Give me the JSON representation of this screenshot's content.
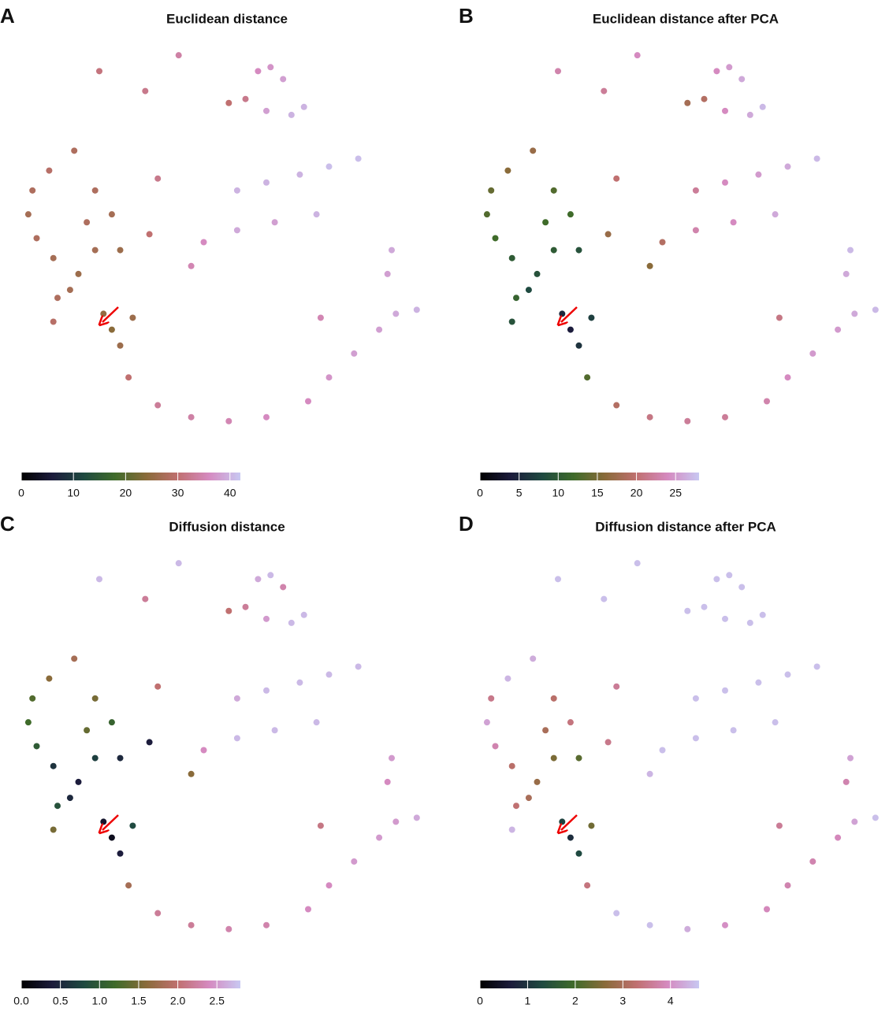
{
  "chart_data": [
    {
      "type": "scatter",
      "panel": "A",
      "title": "Euclidean distance",
      "x": [
        39,
        20,
        31,
        58,
        61,
        64,
        51,
        55,
        60,
        66,
        69,
        14,
        8,
        4,
        3,
        5,
        9,
        15,
        19,
        17,
        19,
        23,
        25,
        10,
        9,
        13,
        21,
        23,
        28,
        25,
        27,
        34,
        42,
        51,
        60,
        70,
        75,
        81,
        87,
        91,
        96,
        89,
        90,
        34,
        42,
        45,
        53,
        60,
        68,
        75,
        82,
        62,
        72,
        53,
        32,
        73
      ],
      "y": [
        97,
        93,
        88,
        93,
        94,
        91,
        85,
        86,
        83,
        82,
        84,
        73,
        68,
        63,
        57,
        51,
        46,
        42,
        48,
        55,
        63,
        57,
        48,
        36,
        30,
        38,
        32,
        28,
        31,
        24,
        16,
        9,
        6,
        5,
        6,
        10,
        16,
        22,
        28,
        32,
        33,
        42,
        48,
        66,
        44,
        50,
        63,
        65,
        67,
        69,
        71,
        55,
        57,
        53,
        52,
        31
      ],
      "values": [
        34,
        31,
        32,
        36,
        37,
        38,
        30,
        32,
        38,
        40,
        40,
        28,
        29,
        28,
        27,
        28,
        27,
        26,
        27,
        28,
        28,
        27,
        26,
        28,
        29,
        27,
        25,
        24,
        26,
        26,
        30,
        33,
        34,
        35,
        36,
        36,
        37,
        38,
        38,
        39,
        40,
        38,
        39,
        32,
        35,
        36,
        40,
        40,
        40,
        41,
        41,
        38,
        40,
        39,
        30,
        35
      ],
      "xlim": [
        0,
        100
      ],
      "ylim": [
        0,
        100
      ],
      "clim": [
        0,
        42
      ],
      "cticks": [
        0,
        10,
        20,
        30,
        40
      ],
      "colormap": [
        "#000000",
        "#1c1c3c",
        "#1f4a40",
        "#3f6b2a",
        "#8a6b3a",
        "#c07070",
        "#d58ac0",
        "#c8c8f2"
      ]
    },
    {
      "type": "scatter",
      "panel": "B",
      "title": "Euclidean distance after PCA",
      "x": [
        39,
        20,
        31,
        58,
        61,
        64,
        51,
        55,
        60,
        66,
        69,
        14,
        8,
        4,
        3,
        5,
        9,
        15,
        19,
        17,
        19,
        23,
        25,
        10,
        9,
        13,
        21,
        23,
        28,
        25,
        27,
        34,
        42,
        51,
        60,
        70,
        75,
        81,
        87,
        91,
        96,
        89,
        90,
        34,
        42,
        45,
        53,
        60,
        68,
        75,
        82,
        62,
        72,
        53,
        32,
        73
      ],
      "y": [
        97,
        93,
        88,
        93,
        94,
        91,
        85,
        86,
        83,
        82,
        84,
        73,
        68,
        63,
        57,
        51,
        46,
        42,
        48,
        55,
        63,
        57,
        48,
        36,
        30,
        38,
        32,
        28,
        31,
        24,
        16,
        9,
        6,
        5,
        6,
        10,
        16,
        22,
        28,
        32,
        33,
        42,
        48,
        66,
        44,
        50,
        63,
        65,
        67,
        69,
        71,
        55,
        57,
        53,
        52,
        31
      ],
      "values": [
        24,
        23,
        22,
        24,
        25,
        26,
        18,
        19,
        24,
        26,
        27,
        17,
        16,
        14,
        13,
        12,
        10,
        9,
        10,
        12,
        13,
        12,
        9,
        11,
        9,
        8,
        5,
        4,
        7,
        6,
        13,
        19,
        21,
        22,
        22,
        23,
        24,
        25,
        25,
        26,
        27,
        26,
        27,
        20,
        16,
        19,
        22,
        24,
        25,
        26,
        27,
        24,
        26,
        23,
        17,
        21
      ],
      "xlim": [
        0,
        100
      ],
      "ylim": [
        0,
        100
      ],
      "clim": [
        0,
        28
      ],
      "cticks": [
        0,
        5,
        10,
        15,
        20,
        25
      ],
      "colormap": [
        "#000000",
        "#1c1c3c",
        "#1f4a40",
        "#3f6b2a",
        "#8a6b3a",
        "#c07070",
        "#d58ac0",
        "#c8c8f2"
      ]
    },
    {
      "type": "scatter",
      "panel": "C",
      "title": "Diffusion distance",
      "x": [
        39,
        20,
        31,
        58,
        61,
        64,
        51,
        55,
        60,
        66,
        69,
        14,
        8,
        4,
        3,
        5,
        9,
        15,
        19,
        17,
        19,
        23,
        25,
        10,
        9,
        13,
        21,
        23,
        28,
        25,
        27,
        34,
        42,
        51,
        60,
        70,
        75,
        81,
        87,
        91,
        96,
        89,
        90,
        34,
        42,
        45,
        53,
        60,
        68,
        75,
        82,
        62,
        72,
        53,
        32,
        73
      ],
      "y": [
        97,
        93,
        88,
        93,
        94,
        91,
        85,
        86,
        83,
        82,
        84,
        73,
        68,
        63,
        57,
        51,
        46,
        42,
        48,
        55,
        63,
        57,
        48,
        36,
        30,
        38,
        32,
        28,
        31,
        24,
        16,
        9,
        6,
        5,
        6,
        10,
        16,
        22,
        28,
        32,
        33,
        42,
        48,
        66,
        44,
        50,
        63,
        65,
        67,
        69,
        71,
        55,
        57,
        53,
        52,
        31
      ],
      "values": [
        2.7,
        2.7,
        2.2,
        2.6,
        2.7,
        2.3,
        2.0,
        2.2,
        2.5,
        2.7,
        2.7,
        1.8,
        1.6,
        1.3,
        1.2,
        1.0,
        0.6,
        0.4,
        0.7,
        1.4,
        1.5,
        1.1,
        0.5,
        0.9,
        1.5,
        0.5,
        0.3,
        0.2,
        0.8,
        0.4,
        1.8,
        2.2,
        2.2,
        2.3,
        2.3,
        2.4,
        2.4,
        2.5,
        2.5,
        2.5,
        2.6,
        2.4,
        2.5,
        2.0,
        1.6,
        2.4,
        2.6,
        2.7,
        2.7,
        2.7,
        2.7,
        2.7,
        2.7,
        2.7,
        0.4,
        2.1
      ],
      "xlim": [
        0,
        100
      ],
      "ylim": [
        0,
        100
      ],
      "clim": [
        0,
        2.8
      ],
      "cticks": [
        {
          "value": 0,
          "label": "0.0"
        },
        0.5,
        {
          "value": 1,
          "label": "1.0"
        },
        1.5,
        {
          "value": 2,
          "label": "2.0"
        },
        2.5
      ],
      "colormap": [
        "#000000",
        "#1c1c3c",
        "#1f4a40",
        "#3f6b2a",
        "#8a6b3a",
        "#c07070",
        "#d58ac0",
        "#c8c8f2"
      ]
    },
    {
      "type": "scatter",
      "panel": "D",
      "title": "Diffusion distance after PCA",
      "x": [
        39,
        20,
        31,
        58,
        61,
        64,
        51,
        55,
        60,
        66,
        69,
        14,
        8,
        4,
        3,
        5,
        9,
        15,
        19,
        17,
        19,
        23,
        25,
        10,
        9,
        13,
        21,
        23,
        28,
        25,
        27,
        34,
        42,
        51,
        60,
        70,
        75,
        81,
        87,
        91,
        96,
        89,
        90,
        34,
        42,
        45,
        53,
        60,
        68,
        75,
        82,
        62,
        72,
        53,
        32,
        73
      ],
      "y": [
        97,
        93,
        88,
        93,
        94,
        91,
        85,
        86,
        83,
        82,
        84,
        73,
        68,
        63,
        57,
        51,
        46,
        42,
        48,
        55,
        63,
        57,
        48,
        36,
        30,
        38,
        32,
        28,
        31,
        24,
        16,
        9,
        6,
        5,
        6,
        10,
        16,
        22,
        28,
        32,
        33,
        42,
        48,
        66,
        44,
        50,
        63,
        65,
        67,
        69,
        71,
        55,
        57,
        53,
        52,
        31
      ],
      "values": [
        4.5,
        4.5,
        4.5,
        4.5,
        4.5,
        4.5,
        4.5,
        4.5,
        4.5,
        4.5,
        4.5,
        4.3,
        4.4,
        3.5,
        4.2,
        3.8,
        3.2,
        2.8,
        2.5,
        3.0,
        3.2,
        3.4,
        2.2,
        3.3,
        4.4,
        3.0,
        1.2,
        0.9,
        2.4,
        1.3,
        3.4,
        4.5,
        4.5,
        4.3,
        4.0,
        3.9,
        3.8,
        3.8,
        3.9,
        4.2,
        4.5,
        3.8,
        4.2,
        3.6,
        4.4,
        4.5,
        4.5,
        4.5,
        4.5,
        4.5,
        4.5,
        4.5,
        4.5,
        4.5,
        3.5,
        3.6
      ],
      "xlim": [
        0,
        100
      ],
      "ylim": [
        0,
        100
      ],
      "clim": [
        0,
        4.6
      ],
      "cticks": [
        0,
        1,
        2,
        3,
        4
      ],
      "colormap": [
        "#000000",
        "#1c1c3c",
        "#1f4a40",
        "#3f6b2a",
        "#8a6b3a",
        "#c07070",
        "#d58ac0",
        "#c8c8f2"
      ]
    }
  ]
}
